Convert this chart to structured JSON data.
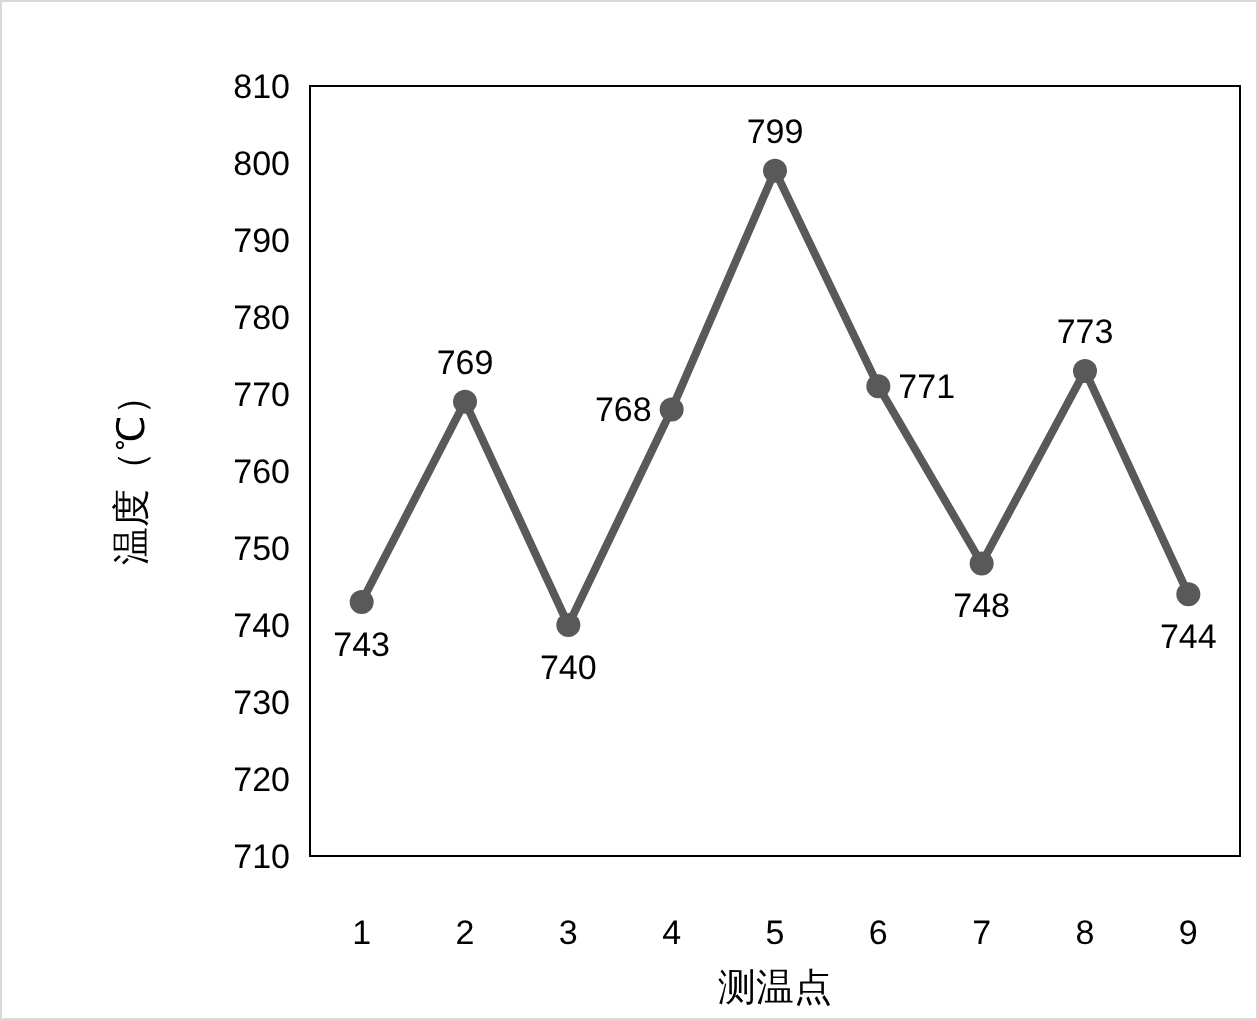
{
  "chart_data": {
    "type": "line",
    "xlabel": "测温点",
    "ylabel": "温度（℃）",
    "categories": [
      "1",
      "2",
      "3",
      "4",
      "5",
      "6",
      "7",
      "8",
      "9"
    ],
    "series": [
      {
        "color": "#595959",
        "values": [
          743,
          769,
          740,
          768,
          799,
          771,
          748,
          773,
          744
        ]
      }
    ],
    "ylim": [
      710,
      810
    ],
    "yticks": [
      710,
      720,
      730,
      740,
      750,
      760,
      770,
      780,
      790,
      800,
      810
    ],
    "data_labels": true,
    "marker": "circle",
    "line_style": "solid",
    "grid": false
  }
}
